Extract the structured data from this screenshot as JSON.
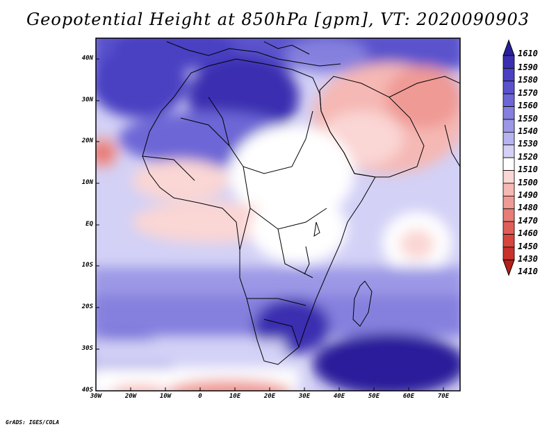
{
  "title": "Geopotential Height at 850hPa [gpm], VT: 2020090903",
  "credit": "GrADS: IGES/COLA",
  "lat_labels": [
    "40N",
    "30N",
    "20N",
    "10N",
    "EQ",
    "10S",
    "20S",
    "30S",
    "40S"
  ],
  "lon_labels": [
    "30W",
    "20W",
    "10W",
    "0",
    "10E",
    "20E",
    "30E",
    "40E",
    "50E",
    "60E",
    "70E"
  ],
  "colorbar": {
    "labels": [
      "1610",
      "1590",
      "1580",
      "1570",
      "1560",
      "1550",
      "1540",
      "1530",
      "1520",
      "1510",
      "1500",
      "1490",
      "1480",
      "1470",
      "1460",
      "1450",
      "1430",
      "1410"
    ],
    "colors": [
      "#2a1f9a",
      "#3a2fb0",
      "#4a40c2",
      "#5a52cc",
      "#6d66d6",
      "#8580de",
      "#9c98e6",
      "#b6b3ee",
      "#d3d1f6",
      "#ffffff",
      "#fad6d4",
      "#f5b8b4",
      "#ef9a95",
      "#e87c76",
      "#e05e58",
      "#d6463f",
      "#c8322b",
      "#b51f1a"
    ]
  },
  "map_data": {
    "field": "Geopotential Height",
    "level": "850hPa",
    "units": "gpm",
    "valid_time": "2020090903",
    "lon_range": [
      -30,
      75
    ],
    "lat_range": [
      -40,
      45
    ]
  }
}
